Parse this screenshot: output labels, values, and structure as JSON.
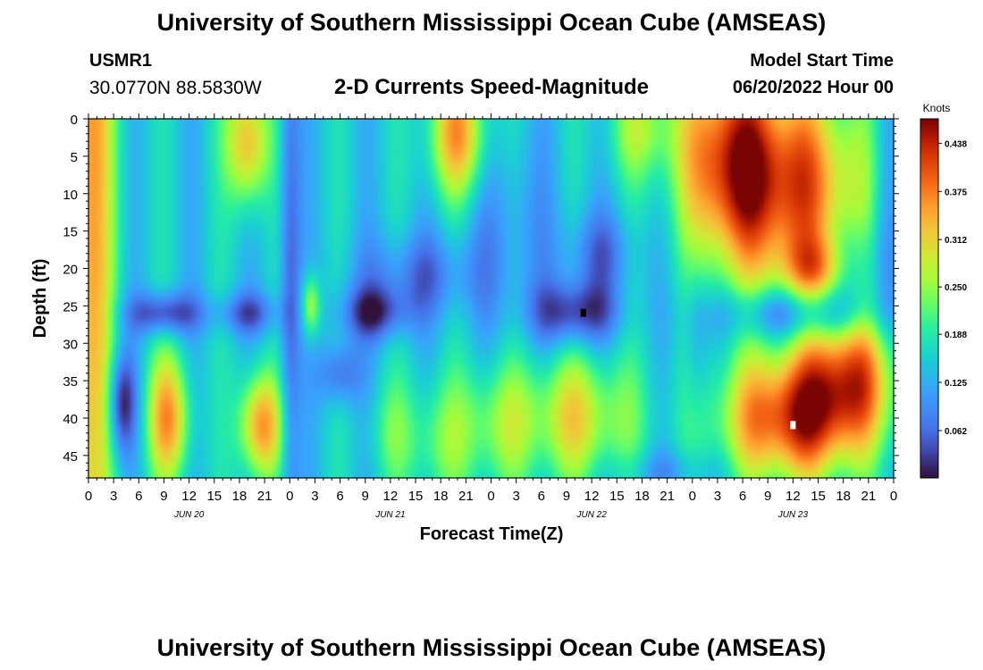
{
  "header": {
    "title": "University of Southern Mississippi Ocean Cube (AMSEAS)",
    "station_id": "USMR1",
    "station_coords": "30.0770N  88.5830W",
    "model_start_label": "Model Start Time",
    "model_start_value": "06/20/2022 Hour 00",
    "bottom_title": "University of Southern Mississippi Ocean Cube (AMSEAS)"
  },
  "chart_data": {
    "type": "heatmap",
    "title": "2-D Currents Speed-Magnitude",
    "xlabel": "Forecast Time(Z)",
    "ylabel": "Depth (ft)",
    "xlim": [
      0,
      96
    ],
    "ylim": [
      0,
      48
    ],
    "x_ticks": [
      0,
      3,
      6,
      9,
      12,
      15,
      18,
      21,
      24,
      27,
      30,
      33,
      36,
      39,
      42,
      45,
      48,
      51,
      54,
      57,
      60,
      63,
      66,
      69,
      72,
      75,
      78,
      81,
      84,
      87,
      90,
      93,
      96
    ],
    "x_tick_labels": [
      "0",
      "3",
      "6",
      "9",
      "12",
      "15",
      "18",
      "21",
      "0",
      "3",
      "6",
      "9",
      "12",
      "15",
      "18",
      "21",
      "0",
      "3",
      "6",
      "9",
      "12",
      "15",
      "18",
      "21",
      "0",
      "3",
      "6",
      "9",
      "12",
      "15",
      "18",
      "21",
      "0"
    ],
    "day_labels": [
      {
        "x": 12,
        "label": "JUN 20"
      },
      {
        "x": 36,
        "label": "JUN 21"
      },
      {
        "x": 60,
        "label": "JUN 22"
      },
      {
        "x": 84,
        "label": "JUN 23"
      }
    ],
    "y_ticks": [
      0,
      5,
      10,
      15,
      20,
      25,
      30,
      35,
      40,
      45
    ],
    "y_tick_labels": [
      "0",
      "5",
      "10",
      "15",
      "20",
      "25",
      "30",
      "35",
      "40",
      "45"
    ],
    "colorbar": {
      "label": "Knots",
      "min": 0.0,
      "max": 0.47,
      "ticks": [
        0.062,
        0.125,
        0.188,
        0.25,
        0.312,
        0.375,
        0.438
      ],
      "tick_labels": [
        "0.062",
        "0.125",
        "0.188",
        "0.250",
        "0.312",
        "0.375",
        "0.438"
      ]
    },
    "markers": [
      {
        "x": 59,
        "depth": 26,
        "value": 0.0
      },
      {
        "x": 84,
        "depth": 41,
        "value": 0.47
      }
    ],
    "features": [
      {
        "t": 0,
        "d": 0,
        "st": 2.2,
        "sd": 60,
        "amp": 0.2
      },
      {
        "t": 9.5,
        "d": 40,
        "st": 1.8,
        "sd": 6,
        "amp": 0.2
      },
      {
        "t": 4,
        "d": 38,
        "st": 1.2,
        "sd": 5,
        "amp": -0.15
      },
      {
        "t": 9,
        "d": 26,
        "st": 3,
        "sd": 2,
        "amp": -0.14
      },
      {
        "t": 19,
        "d": 3,
        "st": 1.8,
        "sd": 6,
        "amp": 0.2
      },
      {
        "t": 20.5,
        "d": 41,
        "st": 1.8,
        "sd": 5,
        "amp": 0.22
      },
      {
        "t": 19,
        "d": 26,
        "st": 2.5,
        "sd": 2,
        "amp": -0.1
      },
      {
        "t": 24,
        "d": 20,
        "st": 0.9,
        "sd": 30,
        "amp": -0.1
      },
      {
        "t": 26.5,
        "d": 25,
        "st": 0.8,
        "sd": 3,
        "amp": 0.14
      },
      {
        "t": 30,
        "d": 34,
        "st": 1.8,
        "sd": 3,
        "amp": -0.1
      },
      {
        "t": 34,
        "d": 26,
        "st": 3,
        "sd": 2.5,
        "amp": -0.12
      },
      {
        "t": 39,
        "d": 21,
        "st": 5,
        "sd": 4,
        "amp": -0.08
      },
      {
        "t": 44,
        "d": 2,
        "st": 2.5,
        "sd": 6,
        "amp": 0.2
      },
      {
        "t": 41.5,
        "d": 43,
        "st": 2.5,
        "sd": 6,
        "amp": 0.08
      },
      {
        "t": 36,
        "d": 42,
        "st": 2,
        "sd": 5,
        "amp": 0.06
      },
      {
        "t": 48,
        "d": 41,
        "st": 3,
        "sd": 6,
        "amp": 0.09
      },
      {
        "t": 50,
        "d": 15,
        "st": 4,
        "sd": 10,
        "amp": -0.05
      },
      {
        "t": 58,
        "d": 26,
        "st": 3.5,
        "sd": 3,
        "amp": -0.14
      },
      {
        "t": 61,
        "d": 18,
        "st": 3,
        "sd": 4,
        "amp": -0.08
      },
      {
        "t": 58,
        "d": 40,
        "st": 5,
        "sd": 6,
        "amp": 0.15
      },
      {
        "t": 66,
        "d": 1,
        "st": 3,
        "sd": 5,
        "amp": 0.1
      },
      {
        "t": 69,
        "d": 47,
        "st": 4,
        "sd": 2,
        "amp": -0.05
      },
      {
        "t": 72.5,
        "d": 30,
        "st": 1,
        "sd": 8,
        "amp": -0.05
      },
      {
        "t": 76,
        "d": 5,
        "st": 4,
        "sd": 10,
        "amp": 0.22
      },
      {
        "t": 84,
        "d": 9,
        "st": 6,
        "sd": 10,
        "amp": 0.25
      },
      {
        "t": 87,
        "d": 20,
        "st": 3,
        "sd": 3,
        "amp": 0.12
      },
      {
        "t": 84,
        "d": 40,
        "st": 6,
        "sd": 6,
        "amp": 0.28
      },
      {
        "t": 91,
        "d": 34,
        "st": 4,
        "sd": 6,
        "amp": 0.2
      },
      {
        "t": 84,
        "d": 26,
        "st": 6,
        "sd": 2.5,
        "amp": -0.12
      },
      {
        "t": 91,
        "d": 20,
        "st": 2,
        "sd": 4,
        "amp": -0.08
      },
      {
        "t": 95,
        "d": 15,
        "st": 1.2,
        "sd": 15,
        "amp": -0.06
      }
    ],
    "baseline": 0.15,
    "stripe": {
      "amp": 0.03,
      "period": 7
    }
  }
}
